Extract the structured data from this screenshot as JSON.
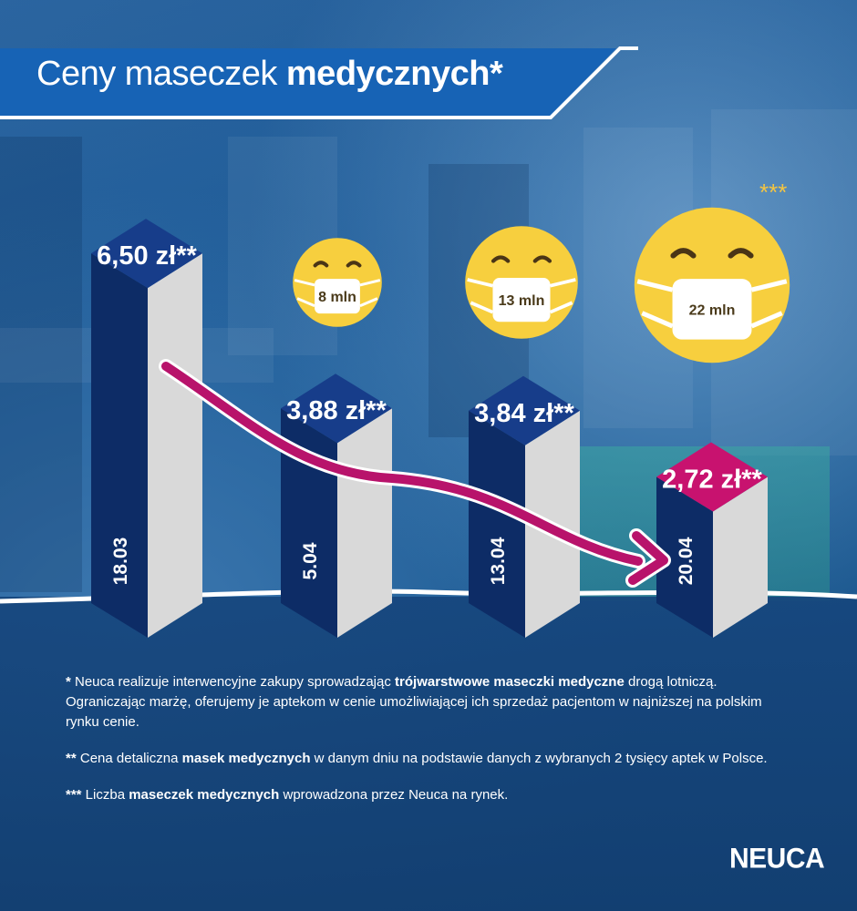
{
  "title": {
    "regular": "Ceny maseczek ",
    "bold": "medycznych*"
  },
  "chart_data": {
    "type": "bar",
    "categories": [
      "18.03",
      "5.04",
      "13.04",
      "20.04"
    ],
    "series": [
      {
        "values": [
          6.5,
          3.88,
          3.84,
          2.72
        ]
      }
    ],
    "value_labels": [
      "6,50 zł**",
      "3,88 zł**",
      "3,84 zł**",
      "2,72 zł**"
    ],
    "masks": [
      {
        "category": "5.04",
        "value": 8,
        "label": "8 mln"
      },
      {
        "category": "13.04",
        "value": 13,
        "label": "13 mln"
      },
      {
        "category": "20.04",
        "value": 22,
        "label": "22 mln"
      }
    ],
    "masks_marker": "***",
    "colors": {
      "bar_front": "#0d2c66",
      "bar_side": "#d9d9d9",
      "bar_top": "#173d8a",
      "highlight_top": "#c8126f",
      "trend_arrow": "#b8136b",
      "mask_face": "#f7cf3e"
    }
  },
  "footnotes": [
    {
      "marker": "*",
      "parts": [
        {
          "t": " Neuca realizuje interwencyjne zakupy sprowadzając ",
          "b": false
        },
        {
          "t": "trójwarstwowe maseczki medyczne",
          "b": true
        },
        {
          "t": " drogą lotniczą. Ograniczając marżę, oferujemy je aptekom w cenie umożliwiającej ich sprzedaż pacjentom w najniższej na polskim rynku cenie.",
          "b": false
        }
      ]
    },
    {
      "marker": "**",
      "parts": [
        {
          "t": " Cena detaliczna ",
          "b": false
        },
        {
          "t": "masek medycznych",
          "b": true
        },
        {
          "t": " w danym dniu na podstawie danych z wybranych 2 tysięcy aptek w Polsce.",
          "b": false
        }
      ]
    },
    {
      "marker": "***",
      "parts": [
        {
          "t": " Liczba ",
          "b": false
        },
        {
          "t": "maseczek medycznych",
          "b": true
        },
        {
          "t": " wprowadzona przez Neuca na rynek.",
          "b": false
        }
      ]
    }
  ],
  "logo": "NEUCA"
}
